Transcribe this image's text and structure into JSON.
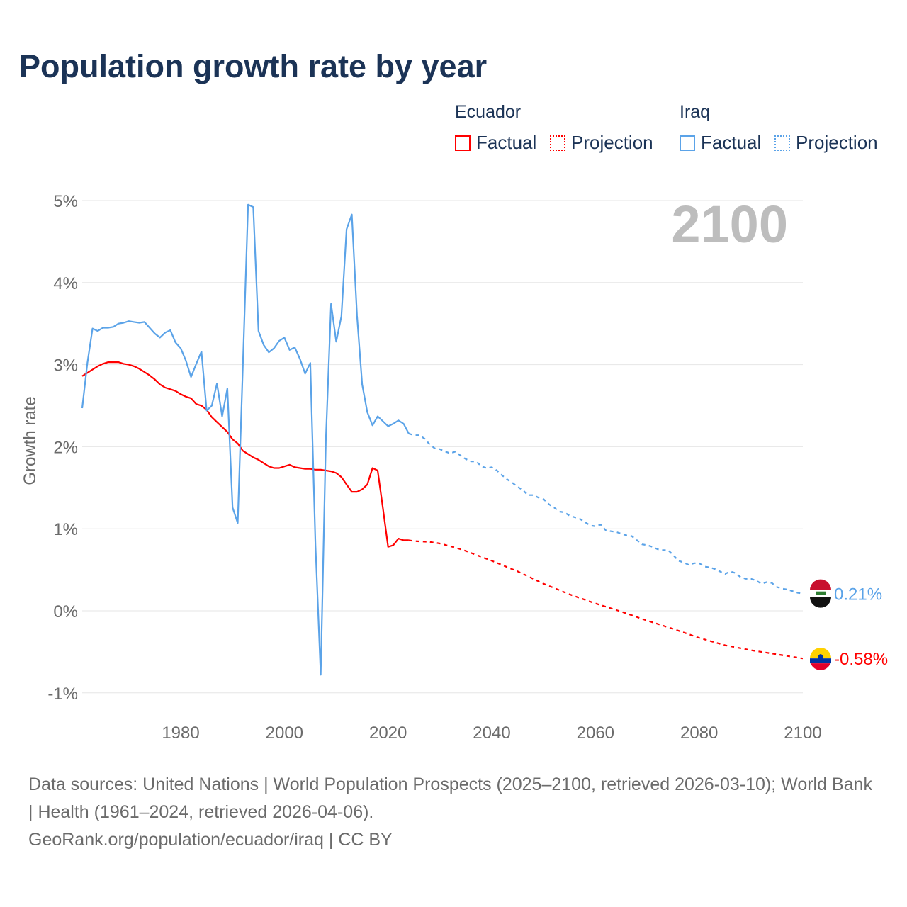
{
  "title": "Population growth rate by year",
  "legend": {
    "groups": [
      {
        "name": "Ecuador",
        "color": "#ff0000",
        "factual_label": "Factual",
        "projection_label": "Projection"
      },
      {
        "name": "Iraq",
        "color": "#5ba3e8",
        "factual_label": "Factual",
        "projection_label": "Projection"
      }
    ]
  },
  "footer": {
    "sources": "Data sources: United Nations | World Population Prospects (2025–2100, retrieved 2026-03-10); World Bank | Health (1961–2024, retrieved 2026-04-06).",
    "credit": "GeoRank.org/population/ecuador/iraq | CC BY"
  },
  "chart_data": {
    "type": "line",
    "title": "Population growth rate by year",
    "ylabel": "Growth rate",
    "xlabel": "",
    "xlim": [
      1961,
      2100
    ],
    "ylim": [
      -1.1,
      5.1
    ],
    "x_ticks": [
      "1980",
      "2000",
      "2020",
      "2040",
      "2060",
      "2080",
      "2100"
    ],
    "y_ticks": [
      {
        "v": 5,
        "label": "5%"
      },
      {
        "v": 4,
        "label": "4%"
      },
      {
        "v": 3,
        "label": "3%"
      },
      {
        "v": 2,
        "label": "2%"
      },
      {
        "v": 1,
        "label": "1%"
      },
      {
        "v": 0,
        "label": "0%"
      },
      {
        "v": -1,
        "label": "-1%"
      }
    ],
    "grid": true,
    "year_label": "2100",
    "series": [
      {
        "name": "Ecuador",
        "color": "#ff0000",
        "end_label": "-0.58%",
        "factual_start": 1961,
        "factual": [
          2.86,
          2.9,
          2.94,
          2.98,
          3.01,
          3.03,
          3.03,
          3.03,
          3.01,
          3.0,
          2.98,
          2.95,
          2.91,
          2.87,
          2.82,
          2.76,
          2.72,
          2.7,
          2.68,
          2.64,
          2.61,
          2.59,
          2.52,
          2.5,
          2.45,
          2.36,
          2.3,
          2.24,
          2.18,
          2.09,
          2.04,
          1.95,
          1.91,
          1.87,
          1.84,
          1.8,
          1.76,
          1.74,
          1.74,
          1.76,
          1.78,
          1.75,
          1.74,
          1.73,
          1.73,
          1.72,
          1.72,
          1.71,
          1.7,
          1.68,
          1.63,
          1.54,
          1.45,
          1.45,
          1.48,
          1.54,
          1.74,
          1.71,
          1.25,
          0.78,
          0.8,
          0.88,
          0.86,
          0.86
        ],
        "projection": [
          [
            2024,
            0.86
          ],
          [
            2025,
            0.85
          ],
          [
            2028,
            0.84
          ],
          [
            2030,
            0.82
          ],
          [
            2033,
            0.77
          ],
          [
            2035,
            0.73
          ],
          [
            2040,
            0.61
          ],
          [
            2045,
            0.48
          ],
          [
            2050,
            0.33
          ],
          [
            2055,
            0.2
          ],
          [
            2060,
            0.09
          ],
          [
            2065,
            -0.01
          ],
          [
            2070,
            -0.12
          ],
          [
            2075,
            -0.22
          ],
          [
            2080,
            -0.33
          ],
          [
            2085,
            -0.42
          ],
          [
            2090,
            -0.48
          ],
          [
            2095,
            -0.53
          ],
          [
            2100,
            -0.58
          ]
        ]
      },
      {
        "name": "Iraq",
        "color": "#5ba3e8",
        "end_label": "0.21%",
        "factual_start": 1961,
        "factual": [
          2.47,
          3.02,
          3.44,
          3.41,
          3.45,
          3.45,
          3.46,
          3.5,
          3.51,
          3.53,
          3.52,
          3.51,
          3.52,
          3.45,
          3.38,
          3.33,
          3.39,
          3.42,
          3.27,
          3.2,
          3.05,
          2.85,
          3.01,
          3.16,
          2.44,
          2.5,
          2.77,
          2.37,
          2.71,
          1.26,
          1.07,
          3.0,
          4.95,
          4.92,
          3.41,
          3.24,
          3.15,
          3.2,
          3.29,
          3.33,
          3.18,
          3.21,
          3.07,
          2.89,
          3.02,
          0.8,
          -0.78,
          2.09,
          3.74,
          3.28,
          3.59,
          4.65,
          4.83,
          3.6,
          2.76,
          2.42,
          2.26,
          2.37,
          2.31,
          2.25,
          2.28,
          2.32,
          2.28,
          2.16
        ],
        "projection_start": 2024,
        "projection": [
          2.16,
          2.14,
          2.14,
          2.1,
          2.03,
          1.98,
          1.97,
          1.94,
          1.92,
          1.94,
          1.89,
          1.85,
          1.82,
          1.82,
          1.76,
          1.74,
          1.75,
          1.71,
          1.65,
          1.6,
          1.56,
          1.51,
          1.47,
          1.41,
          1.41,
          1.38,
          1.36,
          1.3,
          1.26,
          1.21,
          1.2,
          1.16,
          1.14,
          1.12,
          1.08,
          1.04,
          1.03,
          1.05,
          0.98,
          0.97,
          0.96,
          0.94,
          0.92,
          0.91,
          0.86,
          0.81,
          0.8,
          0.78,
          0.75,
          0.74,
          0.74,
          0.68,
          0.61,
          0.59,
          0.56,
          0.58,
          0.58,
          0.54,
          0.53,
          0.51,
          0.48,
          0.45,
          0.48,
          0.46,
          0.41,
          0.39,
          0.39,
          0.37,
          0.33,
          0.35,
          0.34,
          0.29,
          0.27,
          0.26,
          0.24,
          0.22,
          0.21
        ]
      }
    ]
  }
}
